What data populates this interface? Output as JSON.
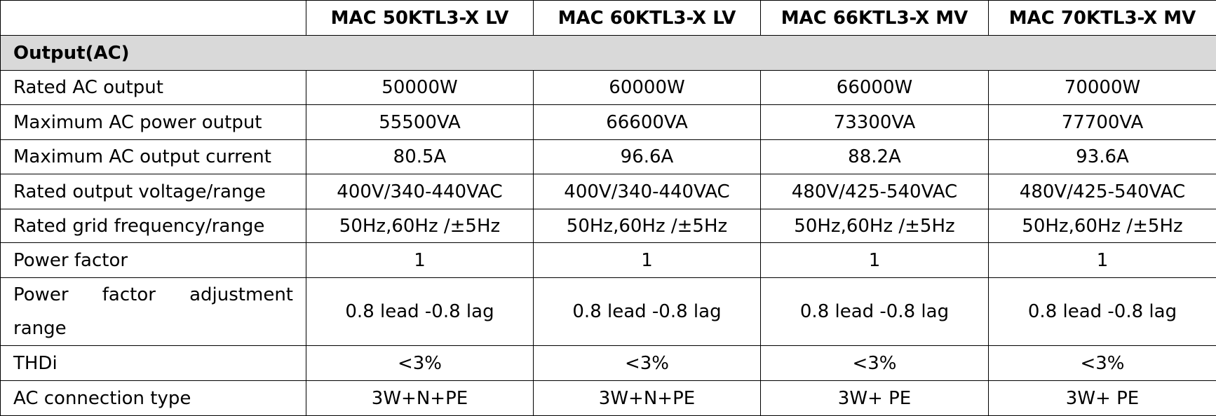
{
  "header": {
    "models": [
      "MAC 50KTL3-X LV",
      "MAC 60KTL3-X LV",
      "MAC 66KTL3-X MV",
      "MAC 70KTL3-X MV"
    ]
  },
  "section": {
    "title": "Output(AC)"
  },
  "rows": [
    {
      "label": "Rated AC output",
      "values": [
        "50000W",
        "60000W",
        "66000W",
        "70000W"
      ]
    },
    {
      "label": "Maximum AC power output",
      "values": [
        "55500VA",
        "66600VA",
        "73300VA",
        "77700VA"
      ]
    },
    {
      "label": "Maximum AC output current",
      "values": [
        "80.5A",
        "96.6A",
        "88.2A",
        "93.6A"
      ]
    },
    {
      "label": "Rated output voltage/range",
      "values": [
        "400V/340-440VAC",
        "400V/340-440VAC",
        "480V/425-540VAC",
        "480V/425-540VAC"
      ]
    },
    {
      "label": "Rated grid frequency/range",
      "values": [
        "50Hz,60Hz /±5Hz",
        "50Hz,60Hz /±5Hz",
        "50Hz,60Hz /±5Hz",
        "50Hz,60Hz /±5Hz"
      ]
    },
    {
      "label": "Power factor",
      "values": [
        "1",
        "1",
        "1",
        "1"
      ]
    },
    {
      "label": "Power factor adjustment range",
      "values": [
        "0.8 lead -0.8 lag",
        "0.8 lead -0.8 lag",
        "0.8 lead -0.8 lag",
        "0.8 lead -0.8 lag"
      ]
    },
    {
      "label": "THDi",
      "values": [
        "<3%",
        "<3%",
        "<3%",
        "<3%"
      ]
    },
    {
      "label": "AC connection type",
      "values": [
        "3W+N+PE",
        "3W+N+PE",
        "3W+ PE",
        "3W+ PE"
      ]
    }
  ]
}
